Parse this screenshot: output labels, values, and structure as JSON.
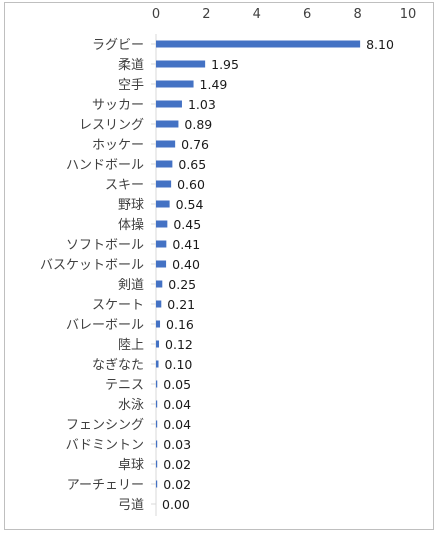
{
  "chart_data": {
    "type": "bar",
    "orientation": "horizontal",
    "categories": [
      "ラグビー",
      "柔道",
      "空手",
      "サッカー",
      "レスリング",
      "ホッケー",
      "ハンドボール",
      "スキー",
      "野球",
      "体操",
      "ソフトボール",
      "バスケットボール",
      "剣道",
      "スケート",
      "バレーボール",
      "陸上",
      "なぎなた",
      "テニス",
      "水泳",
      "フェンシング",
      "バドミントン",
      "卓球",
      "アーチェリー",
      "弓道"
    ],
    "values": [
      8.1,
      1.95,
      1.49,
      1.03,
      0.89,
      0.76,
      0.65,
      0.6,
      0.54,
      0.45,
      0.41,
      0.4,
      0.25,
      0.21,
      0.16,
      0.12,
      0.1,
      0.05,
      0.04,
      0.04,
      0.03,
      0.02,
      0.02,
      0.0
    ],
    "data_labels": [
      "8.10",
      "1.95",
      "1.49",
      "1.03",
      "0.89",
      "0.76",
      "0.65",
      "0.60",
      "0.54",
      "0.45",
      "0.41",
      "0.40",
      "0.25",
      "0.21",
      "0.16",
      "0.12",
      "0.10",
      "0.05",
      "0.04",
      "0.04",
      "0.03",
      "0.02",
      "0.02",
      "0.00"
    ],
    "xlim": [
      0,
      10
    ],
    "xticks": [
      "0",
      "2",
      "4",
      "6",
      "8",
      "10"
    ],
    "xaxis_position": "top",
    "title": "",
    "xlabel": "",
    "ylabel": "",
    "grid": false,
    "legend": false,
    "bar_color": "#4472c4"
  }
}
